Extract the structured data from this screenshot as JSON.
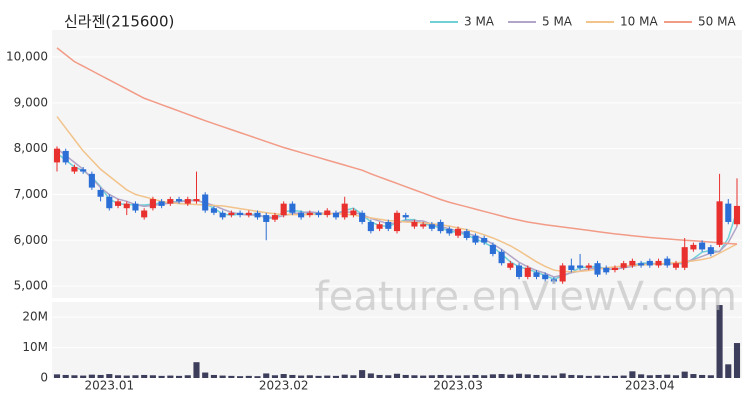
{
  "chart_data": {
    "type": "candlestick",
    "title": "신라젠(215600)",
    "watermark": "feature.enViewV.com",
    "up_color": "#e8312f",
    "down_color": "#2b6fd6",
    "volume_color": "#3d3d5c",
    "grid": true,
    "legend": "top-right",
    "categories": [
      null,
      null,
      null,
      null,
      null,
      null,
      "2023.01",
      null,
      null,
      null,
      null,
      null,
      null,
      null,
      null,
      null,
      null,
      null,
      null,
      null,
      null,
      null,
      null,
      null,
      null,
      null,
      "2023.02",
      null,
      null,
      null,
      null,
      null,
      null,
      null,
      null,
      null,
      null,
      null,
      null,
      null,
      null,
      null,
      null,
      null,
      null,
      null,
      "2023.03",
      null,
      null,
      null,
      null,
      null,
      null,
      null,
      null,
      null,
      null,
      null,
      null,
      null,
      null,
      null,
      null,
      null,
      null,
      null,
      null,
      null,
      "2023.04",
      null,
      null,
      null,
      null,
      null,
      null,
      null,
      null,
      null,
      null
    ],
    "ohlc": [
      [
        7700,
        8050,
        7500,
        8000
      ],
      [
        7950,
        8000,
        7650,
        7700
      ],
      [
        7500,
        7650,
        7450,
        7600
      ],
      [
        7550,
        7600,
        7450,
        7500
      ],
      [
        7450,
        7500,
        7100,
        7150
      ],
      [
        7100,
        7150,
        6850,
        6950
      ],
      [
        6950,
        7000,
        6650,
        6700
      ],
      [
        6750,
        6900,
        6700,
        6850
      ],
      [
        6700,
        6850,
        6550,
        6800
      ],
      [
        6800,
        6850,
        6600,
        6650
      ],
      [
        6500,
        6700,
        6450,
        6650
      ],
      [
        6700,
        6950,
        6650,
        6900
      ],
      [
        6850,
        6900,
        6700,
        6750
      ],
      [
        6800,
        6950,
        6750,
        6900
      ],
      [
        6900,
        6950,
        6800,
        6850
      ],
      [
        6800,
        6950,
        6750,
        6900
      ],
      [
        6850,
        7500,
        6800,
        6900
      ],
      [
        7000,
        7050,
        6600,
        6650
      ],
      [
        6700,
        6750,
        6550,
        6600
      ],
      [
        6600,
        6650,
        6450,
        6500
      ],
      [
        6550,
        6650,
        6500,
        6600
      ],
      [
        6600,
        6650,
        6500,
        6550
      ],
      [
        6550,
        6650,
        6500,
        6600
      ],
      [
        6600,
        6650,
        6450,
        6500
      ],
      [
        6550,
        6600,
        6000,
        6400
      ],
      [
        6450,
        6600,
        6400,
        6550
      ],
      [
        6550,
        6850,
        6500,
        6800
      ],
      [
        6800,
        6850,
        6550,
        6600
      ],
      [
        6600,
        6650,
        6450,
        6500
      ],
      [
        6550,
        6650,
        6500,
        6600
      ],
      [
        6600,
        6650,
        6500,
        6550
      ],
      [
        6550,
        6700,
        6500,
        6650
      ],
      [
        6600,
        6650,
        6450,
        6500
      ],
      [
        6500,
        6950,
        6450,
        6800
      ],
      [
        6550,
        6700,
        6500,
        6650
      ],
      [
        6600,
        6650,
        6350,
        6400
      ],
      [
        6400,
        6450,
        6150,
        6200
      ],
      [
        6250,
        6400,
        6200,
        6350
      ],
      [
        6400,
        6450,
        6200,
        6250
      ],
      [
        6200,
        6650,
        6150,
        6600
      ],
      [
        6550,
        6600,
        6450,
        6500
      ],
      [
        6300,
        6450,
        6250,
        6400
      ],
      [
        6300,
        6400,
        6250,
        6350
      ],
      [
        6350,
        6400,
        6200,
        6250
      ],
      [
        6400,
        6450,
        6150,
        6200
      ],
      [
        6250,
        6300,
        6100,
        6150
      ],
      [
        6100,
        6300,
        6050,
        6250
      ],
      [
        6200,
        6250,
        6000,
        6050
      ],
      [
        6100,
        6150,
        5900,
        5950
      ],
      [
        6050,
        6100,
        5900,
        5950
      ],
      [
        5900,
        5950,
        5650,
        5700
      ],
      [
        5750,
        5800,
        5450,
        5500
      ],
      [
        5400,
        5550,
        5350,
        5500
      ],
      [
        5450,
        5500,
        5150,
        5200
      ],
      [
        5200,
        5450,
        5150,
        5400
      ],
      [
        5300,
        5350,
        5150,
        5200
      ],
      [
        5250,
        5300,
        5100,
        5150
      ],
      [
        5150,
        5200,
        5050,
        5100
      ],
      [
        5100,
        5500,
        5050,
        5450
      ],
      [
        5450,
        5600,
        5300,
        5350
      ],
      [
        5450,
        5700,
        5350,
        5400
      ],
      [
        5400,
        5500,
        5350,
        5450
      ],
      [
        5500,
        5550,
        5200,
        5250
      ],
      [
        5400,
        5450,
        5250,
        5300
      ],
      [
        5350,
        5450,
        5300,
        5400
      ],
      [
        5400,
        5550,
        5350,
        5500
      ],
      [
        5450,
        5600,
        5400,
        5550
      ],
      [
        5500,
        5550,
        5400,
        5450
      ],
      [
        5550,
        5600,
        5400,
        5450
      ],
      [
        5450,
        5600,
        5400,
        5550
      ],
      [
        5600,
        5650,
        5400,
        5450
      ],
      [
        5400,
        5550,
        5350,
        5500
      ],
      [
        5400,
        6050,
        5350,
        5850
      ],
      [
        5800,
        5950,
        5750,
        5900
      ],
      [
        5950,
        6000,
        5750,
        5800
      ],
      [
        5850,
        5900,
        5650,
        5700
      ],
      [
        5900,
        7450,
        5850,
        6850
      ],
      [
        6800,
        6900,
        6350,
        6400
      ],
      [
        6350,
        7350,
        6300,
        6750
      ]
    ],
    "volume": [
      1200000,
      1000000,
      900000,
      800000,
      1100000,
      1000000,
      1300000,
      900000,
      800000,
      900000,
      1000000,
      900000,
      700000,
      800000,
      700000,
      900000,
      5200000,
      1800000,
      1000000,
      800000,
      700000,
      600000,
      700000,
      600000,
      1500000,
      900000,
      1300000,
      1000000,
      800000,
      900000,
      700000,
      800000,
      700000,
      1100000,
      900000,
      2600000,
      1500000,
      1000000,
      900000,
      1400000,
      1000000,
      900000,
      800000,
      900000,
      1000000,
      900000,
      800000,
      900000,
      1000000,
      900000,
      1200000,
      1300000,
      1100000,
      1400000,
      1200000,
      1000000,
      900000,
      800000,
      1500000,
      1000000,
      900000,
      700000,
      800000,
      700000,
      700000,
      800000,
      2200000,
      1200000,
      900000,
      1000000,
      1100000,
      900000,
      2100000,
      1300000,
      1000000,
      900000,
      24000000,
      4500000,
      11500000
    ],
    "series": [
      {
        "name": "3 MA",
        "color": "#6fd0d8",
        "values": [
          7900,
          7750,
          7600,
          7520,
          7380,
          7170,
          6900,
          6800,
          6780,
          6770,
          6770,
          6790,
          6820,
          6830,
          6850,
          6870,
          6880,
          6800,
          6700,
          6570,
          6550,
          6570,
          6560,
          6570,
          6480,
          6490,
          6620,
          6650,
          6630,
          6580,
          6570,
          6580,
          6580,
          6650,
          6700,
          6570,
          6400,
          6320,
          6300,
          6380,
          6450,
          6450,
          6360,
          6320,
          6270,
          6200,
          6170,
          6120,
          6030,
          5950,
          5850,
          5700,
          5530,
          5420,
          5370,
          5300,
          5230,
          5150,
          5220,
          5300,
          5400,
          5420,
          5430,
          5370,
          5370,
          5400,
          5450,
          5500,
          5500,
          5480,
          5480,
          5500,
          5480,
          5600,
          5740,
          5780,
          5750,
          6050,
          6650
        ]
      },
      {
        "name": "5 MA",
        "color": "#b2a5c8",
        "values": [
          8000,
          7850,
          7700,
          7550,
          7350,
          7150,
          7000,
          6900,
          6850,
          6780,
          6740,
          6760,
          6790,
          6810,
          6840,
          6860,
          6870,
          6820,
          6760,
          6680,
          6610,
          6570,
          6550,
          6550,
          6510,
          6490,
          6540,
          6580,
          6600,
          6620,
          6600,
          6580,
          6590,
          6620,
          6610,
          6560,
          6480,
          6420,
          6360,
          6380,
          6420,
          6430,
          6420,
          6350,
          6300,
          6250,
          6200,
          6150,
          6100,
          6020,
          5920,
          5800,
          5660,
          5520,
          5420,
          5340,
          5280,
          5200,
          5240,
          5290,
          5330,
          5380,
          5400,
          5370,
          5370,
          5400,
          5430,
          5470,
          5480,
          5490,
          5480,
          5490,
          5520,
          5580,
          5650,
          5720,
          5760,
          5950,
          6300
        ]
      },
      {
        "name": "10 MA",
        "color": "#f2c38b",
        "values": [
          8700,
          8450,
          8200,
          7950,
          7750,
          7550,
          7400,
          7250,
          7100,
          7000,
          6950,
          6900,
          6850,
          6820,
          6800,
          6790,
          6780,
          6770,
          6760,
          6750,
          6720,
          6690,
          6660,
          6630,
          6600,
          6580,
          6560,
          6560,
          6560,
          6560,
          6570,
          6580,
          6580,
          6570,
          6550,
          6520,
          6490,
          6460,
          6430,
          6420,
          6400,
          6390,
          6380,
          6360,
          6340,
          6310,
          6270,
          6230,
          6180,
          6120,
          6050,
          5970,
          5880,
          5770,
          5650,
          5530,
          5430,
          5350,
          5320,
          5310,
          5320,
          5340,
          5370,
          5400,
          5420,
          5440,
          5450,
          5460,
          5470,
          5480,
          5500,
          5510,
          5530,
          5550,
          5580,
          5620,
          5720,
          5820,
          5920
        ]
      },
      {
        "name": "50 MA",
        "color": "#f29b87",
        "values": [
          10200,
          10050,
          9900,
          9800,
          9700,
          9600,
          9500,
          9400,
          9300,
          9200,
          9100,
          9030,
          8960,
          8890,
          8820,
          8750,
          8680,
          8610,
          8545,
          8480,
          8415,
          8350,
          8285,
          8220,
          8155,
          8090,
          8025,
          7970,
          7915,
          7860,
          7805,
          7750,
          7695,
          7640,
          7585,
          7530,
          7450,
          7380,
          7310,
          7240,
          7170,
          7100,
          7030,
          6960,
          6890,
          6830,
          6780,
          6730,
          6680,
          6630,
          6580,
          6530,
          6480,
          6440,
          6400,
          6370,
          6340,
          6315,
          6290,
          6265,
          6240,
          6215,
          6190,
          6165,
          6140,
          6120,
          6100,
          6080,
          6060,
          6045,
          6030,
          6015,
          6000,
          5990,
          5975,
          5960,
          5945,
          5930,
          5920
        ]
      }
    ],
    "ylim": [
      4740,
      10590
    ],
    "yticks": [
      {
        "value": 5000,
        "label": "5,000"
      },
      {
        "value": 6000,
        "label": "6,000"
      },
      {
        "value": 7000,
        "label": "7,000"
      },
      {
        "value": 8000,
        "label": "8,000"
      },
      {
        "value": 9000,
        "label": "9,000"
      },
      {
        "value": 10000,
        "label": "10,000"
      }
    ],
    "y2lim": [
      0,
      25000000
    ],
    "y2ticks": [
      0,
      {
        "value": 10000000,
        "label": "10M"
      },
      {
        "value": 20000000,
        "label": "20M"
      }
    ]
  }
}
